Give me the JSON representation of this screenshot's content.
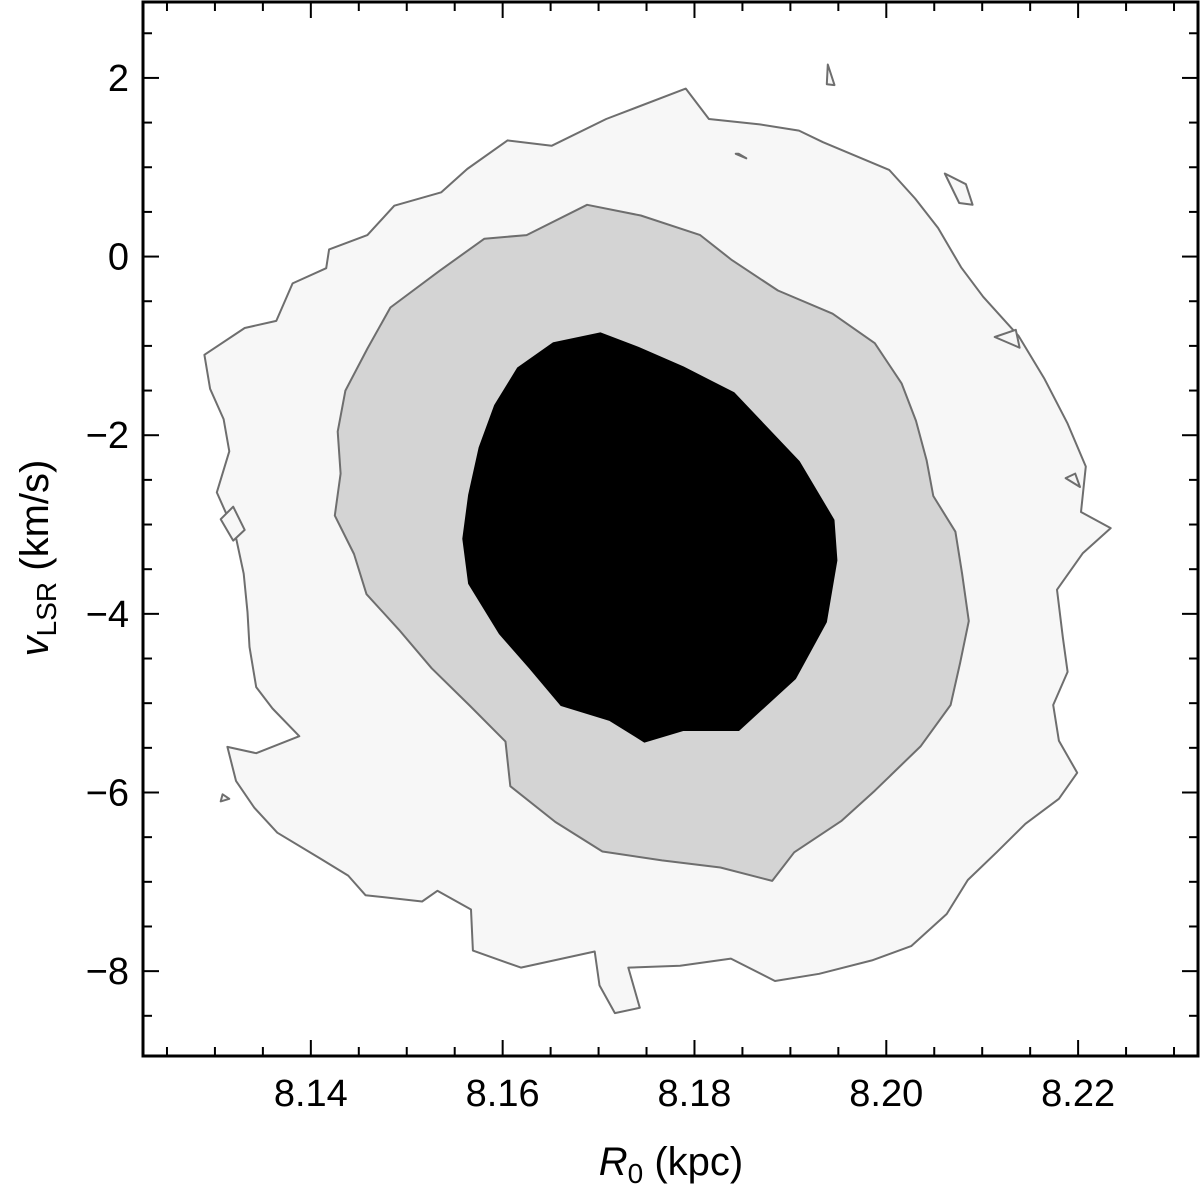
{
  "chart_data": {
    "type": "contour",
    "title": "",
    "xlabel": {
      "symbol": "R",
      "subscript": "0",
      "unit": " (kpc)"
    },
    "ylabel": {
      "symbol": "v",
      "subscript": "LSR",
      "unit": " (km/s)"
    },
    "xlim": [
      8.1225,
      8.2325
    ],
    "ylim": [
      -8.95,
      2.85
    ],
    "x_ticks_major": [
      8.14,
      8.16,
      8.18,
      8.2,
      8.22
    ],
    "x_tick_labels": [
      "8.14",
      "8.16",
      "8.18",
      "8.20",
      "8.22"
    ],
    "x_ticks_minor": [
      8.125,
      8.13,
      8.135,
      8.145,
      8.15,
      8.155,
      8.165,
      8.17,
      8.175,
      8.185,
      8.19,
      8.195,
      8.205,
      8.21,
      8.215,
      8.225,
      8.23
    ],
    "y_ticks_major": [
      -8,
      -6,
      -4,
      -2,
      0,
      2
    ],
    "y_tick_labels": [
      "−8",
      "−6",
      "−4",
      "−2",
      "0",
      "2"
    ],
    "y_ticks_minor": [
      -8.5,
      -7.5,
      -7,
      -6.5,
      -5.5,
      -5,
      -4.5,
      -3.5,
      -3,
      -2.5,
      -1.5,
      -1,
      -0.5,
      0.5,
      1,
      1.5,
      2.5
    ],
    "grid": false,
    "legend": "none",
    "colors": {
      "outer_region": "#f7f7f7",
      "middle_region": "#d4d4d4",
      "inner_region": "#000000",
      "contour_line": "#6e6e6e",
      "frame": "#000000"
    },
    "levels": [
      {
        "name": "outer",
        "fill": "#f7f7f7",
        "stroke": "#6e6e6e",
        "polygons": [
          [
            [
              8.1717,
              -8.47
            ],
            [
              8.1701,
              -8.16
            ],
            [
              8.1696,
              -7.78
            ],
            [
              8.1619,
              -7.96
            ],
            [
              8.1569,
              -7.77
            ],
            [
              8.1567,
              -7.31
            ],
            [
              8.1532,
              -7.1
            ],
            [
              8.1516,
              -7.22
            ],
            [
              8.1457,
              -7.15
            ],
            [
              8.1439,
              -6.93
            ],
            [
              8.141,
              -6.74
            ],
            [
              8.1365,
              -6.45
            ],
            [
              8.1341,
              -6.17
            ],
            [
              8.1322,
              -5.87
            ],
            [
              8.1313,
              -5.49
            ],
            [
              8.1343,
              -5.56
            ],
            [
              8.1388,
              -5.37
            ],
            [
              8.136,
              -5.06
            ],
            [
              8.1343,
              -4.82
            ],
            [
              8.1336,
              -4.37
            ],
            [
              8.1334,
              -3.98
            ],
            [
              8.133,
              -3.55
            ],
            [
              8.1321,
              -3.1
            ],
            [
              8.1302,
              -2.64
            ],
            [
              8.1315,
              -2.18
            ],
            [
              8.1309,
              -1.82
            ],
            [
              8.1295,
              -1.48
            ],
            [
              8.1289,
              -1.1
            ],
            [
              8.1331,
              -0.8
            ],
            [
              8.1364,
              -0.72
            ],
            [
              8.1381,
              -0.3
            ],
            [
              8.1416,
              -0.13
            ],
            [
              8.1419,
              0.08
            ],
            [
              8.1459,
              0.24
            ],
            [
              8.1487,
              0.57
            ],
            [
              8.1536,
              0.72
            ],
            [
              8.1563,
              0.98
            ],
            [
              8.1605,
              1.3
            ],
            [
              8.1651,
              1.24
            ],
            [
              8.1708,
              1.54
            ],
            [
              8.1791,
              1.88
            ],
            [
              8.1815,
              1.54
            ],
            [
              8.1868,
              1.48
            ],
            [
              8.1909,
              1.41
            ],
            [
              8.1934,
              1.28
            ],
            [
              8.2003,
              0.97
            ],
            [
              8.203,
              0.65
            ],
            [
              8.2054,
              0.32
            ],
            [
              8.2078,
              -0.12
            ],
            [
              8.2101,
              -0.45
            ],
            [
              8.2138,
              -0.89
            ],
            [
              8.2165,
              -1.37
            ],
            [
              8.2189,
              -1.87
            ],
            [
              8.2208,
              -2.35
            ],
            [
              8.2203,
              -2.86
            ],
            [
              8.2234,
              -3.04
            ],
            [
              8.2205,
              -3.32
            ],
            [
              8.2178,
              -3.73
            ],
            [
              8.2184,
              -4.26
            ],
            [
              8.2189,
              -4.65
            ],
            [
              8.2174,
              -5.02
            ],
            [
              8.218,
              -5.42
            ],
            [
              8.2199,
              -5.78
            ],
            [
              8.218,
              -6.07
            ],
            [
              8.2145,
              -6.35
            ],
            [
              8.2115,
              -6.67
            ],
            [
              8.2085,
              -6.98
            ],
            [
              8.2063,
              -7.36
            ],
            [
              8.2026,
              -7.72
            ],
            [
              8.1985,
              -7.88
            ],
            [
              8.193,
              -8.03
            ],
            [
              8.1884,
              -8.11
            ],
            [
              8.1838,
              -7.86
            ],
            [
              8.1785,
              -7.94
            ],
            [
              8.1731,
              -7.96
            ],
            [
              8.1743,
              -8.41
            ]
          ],
          [
            [
              8.1306,
              -2.94
            ],
            [
              8.1319,
              -2.8
            ],
            [
              8.1331,
              -3.06
            ],
            [
              8.1319,
              -3.18
            ]
          ],
          [
            [
              8.1308,
              -6.02
            ],
            [
              8.1315,
              -6.07
            ],
            [
              8.1306,
              -6.1
            ]
          ],
          [
            [
              8.1939,
              2.15
            ],
            [
              8.1946,
              1.92
            ],
            [
              8.1938,
              1.93
            ]
          ],
          [
            [
              8.1843,
              1.15
            ],
            [
              8.1854,
              1.1
            ],
            [
              8.1846,
              1.15
            ]
          ],
          [
            [
              8.2061,
              0.93
            ],
            [
              8.2083,
              0.81
            ],
            [
              8.209,
              0.58
            ],
            [
              8.2076,
              0.6
            ]
          ],
          [
            [
              8.2113,
              -0.9
            ],
            [
              8.2139,
              -1.02
            ],
            [
              8.2135,
              -0.82
            ]
          ],
          [
            [
              8.2187,
              -2.48
            ],
            [
              8.2197,
              -2.43
            ],
            [
              8.2202,
              -2.58
            ]
          ]
        ]
      },
      {
        "name": "middle",
        "fill": "#d4d4d4",
        "stroke": "#6e6e6e",
        "polygons": [
          [
            [
              8.1608,
              -5.93
            ],
            [
              8.1655,
              -6.33
            ],
            [
              8.1704,
              -6.66
            ],
            [
              8.1766,
              -6.76
            ],
            [
              8.1827,
              -6.84
            ],
            [
              8.1881,
              -6.99
            ],
            [
              8.1904,
              -6.67
            ],
            [
              8.1953,
              -6.32
            ],
            [
              8.1988,
              -5.98
            ],
            [
              8.2036,
              -5.48
            ],
            [
              8.2067,
              -5.02
            ],
            [
              8.2077,
              -4.55
            ],
            [
              8.2086,
              -4.08
            ],
            [
              8.2079,
              -3.55
            ],
            [
              8.2072,
              -3.08
            ],
            [
              8.2049,
              -2.68
            ],
            [
              8.2042,
              -2.28
            ],
            [
              8.2031,
              -1.84
            ],
            [
              8.2016,
              -1.42
            ],
            [
              8.1988,
              -0.97
            ],
            [
              8.1944,
              -0.64
            ],
            [
              8.1887,
              -0.38
            ],
            [
              8.1839,
              -0.04
            ],
            [
              8.1806,
              0.24
            ],
            [
              8.1744,
              0.46
            ],
            [
              8.1688,
              0.58
            ],
            [
              8.1625,
              0.24
            ],
            [
              8.1581,
              0.2
            ],
            [
              8.1534,
              -0.16
            ],
            [
              8.1483,
              -0.57
            ],
            [
              8.1459,
              -1.03
            ],
            [
              8.1436,
              -1.5
            ],
            [
              8.1428,
              -1.96
            ],
            [
              8.1431,
              -2.43
            ],
            [
              8.1425,
              -2.9
            ],
            [
              8.1445,
              -3.33
            ],
            [
              8.1458,
              -3.78
            ],
            [
              8.1492,
              -4.18
            ],
            [
              8.1526,
              -4.61
            ],
            [
              8.1566,
              -5.03
            ],
            [
              8.1603,
              -5.43
            ]
          ]
        ]
      },
      {
        "name": "inner",
        "fill": "#000000",
        "stroke": "#000000",
        "polygons": [
          [
            [
              8.1661,
              -5.02
            ],
            [
              8.1712,
              -5.19
            ],
            [
              8.1748,
              -5.43
            ],
            [
              8.1788,
              -5.3
            ],
            [
              8.1846,
              -5.3
            ],
            [
              8.1905,
              -4.72
            ],
            [
              8.1937,
              -4.09
            ],
            [
              8.1948,
              -3.4
            ],
            [
              8.1945,
              -2.95
            ],
            [
              8.1909,
              -2.3
            ],
            [
              8.1841,
              -1.53
            ],
            [
              8.1788,
              -1.24
            ],
            [
              8.1741,
              -1.02
            ],
            [
              8.1702,
              -0.86
            ],
            [
              8.1653,
              -0.97
            ],
            [
              8.1616,
              -1.25
            ],
            [
              8.1592,
              -1.67
            ],
            [
              8.1576,
              -2.14
            ],
            [
              8.1565,
              -2.67
            ],
            [
              8.1559,
              -3.16
            ],
            [
              8.1565,
              -3.66
            ],
            [
              8.1597,
              -4.22
            ],
            [
              8.1628,
              -4.6
            ]
          ]
        ]
      }
    ]
  }
}
